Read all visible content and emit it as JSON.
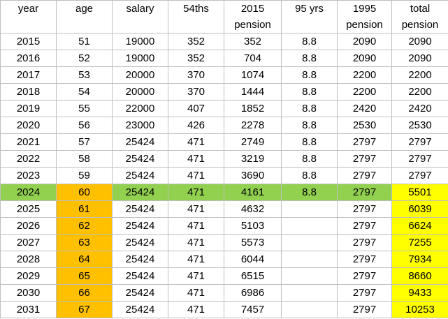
{
  "table": {
    "columns": [
      {
        "top": "year"
      },
      {
        "top": "age"
      },
      {
        "top": "salary"
      },
      {
        "top": "54ths"
      },
      {
        "top": "2015",
        "bottom": "pension"
      },
      {
        "top": "95 yrs"
      },
      {
        "top": "1995",
        "bottom": "pension"
      },
      {
        "top": "total",
        "bottom": "pension"
      }
    ],
    "rows": [
      [
        2015,
        51,
        19000,
        352,
        352,
        8.8,
        2090,
        2090
      ],
      [
        2016,
        52,
        19000,
        352,
        704,
        8.8,
        2090,
        2090
      ],
      [
        2017,
        53,
        20000,
        370,
        1074,
        8.8,
        2200,
        2200
      ],
      [
        2018,
        54,
        20000,
        370,
        1444,
        8.8,
        2200,
        2200
      ],
      [
        2019,
        55,
        22000,
        407,
        1852,
        8.8,
        2420,
        2420
      ],
      [
        2020,
        56,
        23000,
        426,
        2278,
        8.8,
        2530,
        2530
      ],
      [
        2021,
        57,
        25424,
        471,
        2749,
        8.8,
        2797,
        2797
      ],
      [
        2022,
        58,
        25424,
        471,
        3219,
        8.8,
        2797,
        2797
      ],
      [
        2023,
        59,
        25424,
        471,
        3690,
        8.8,
        2797,
        2797
      ],
      [
        2024,
        60,
        25424,
        471,
        4161,
        8.8,
        2797,
        5501
      ],
      [
        2025,
        61,
        25424,
        471,
        4632,
        null,
        2797,
        6039
      ],
      [
        2026,
        62,
        25424,
        471,
        5103,
        null,
        2797,
        6624
      ],
      [
        2027,
        63,
        25424,
        471,
        5573,
        null,
        2797,
        7255
      ],
      [
        2028,
        64,
        25424,
        471,
        6044,
        null,
        2797,
        7934
      ],
      [
        2029,
        65,
        25424,
        471,
        6515,
        null,
        2797,
        8660
      ],
      [
        2030,
        66,
        25424,
        471,
        6986,
        null,
        2797,
        9433
      ],
      [
        2031,
        67,
        25424,
        471,
        7457,
        null,
        2797,
        10253
      ]
    ]
  }
}
